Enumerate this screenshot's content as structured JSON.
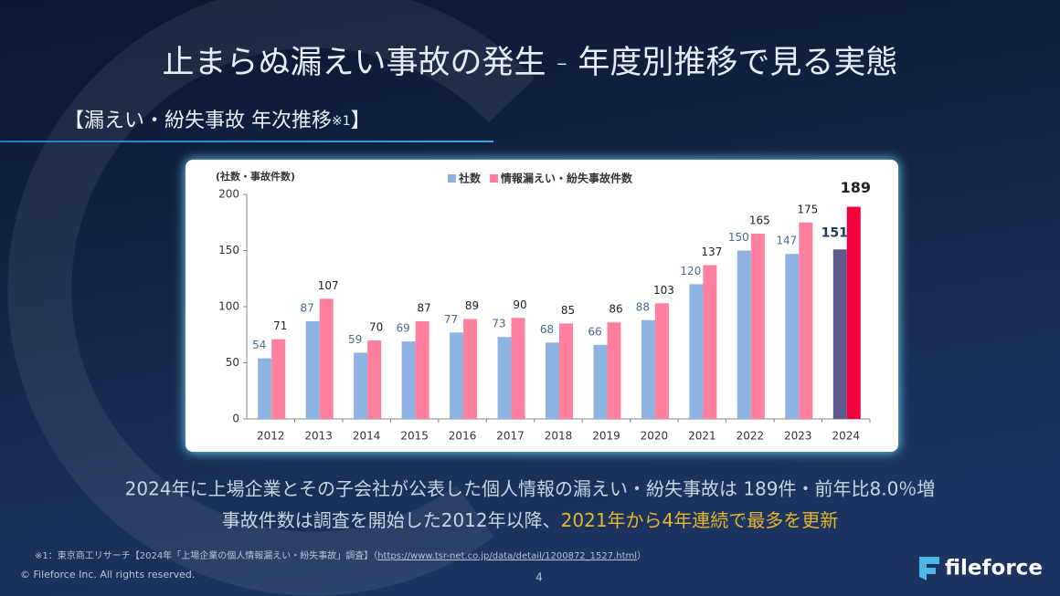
{
  "title": "止まらぬ漏えい事故の発生 - 年度別推移で見る実態",
  "subtitle": {
    "main": "【漏えい・紛失事故 年次推移",
    "note": "※1",
    "close": "】"
  },
  "chart_data": {
    "type": "bar",
    "y_label": "(社数・事故件数)",
    "categories": [
      "2012",
      "2013",
      "2014",
      "2015",
      "2016",
      "2017",
      "2018",
      "2019",
      "2020",
      "2021",
      "2022",
      "2023",
      "2024"
    ],
    "series": [
      {
        "name": "社数",
        "color": "#8db3e2",
        "colors": [
          "#8db3e2",
          "#8db3e2",
          "#8db3e2",
          "#8db3e2",
          "#8db3e2",
          "#8db3e2",
          "#8db3e2",
          "#8db3e2",
          "#8db3e2",
          "#8db3e2",
          "#8db3e2",
          "#8db3e2",
          "#5f5a8e"
        ],
        "values": [
          54,
          87,
          59,
          69,
          77,
          73,
          68,
          66,
          88,
          120,
          150,
          147,
          151
        ]
      },
      {
        "name": "情報漏えい・紛失事故件数",
        "color": "#ff7f9e",
        "colors": [
          "#ff7f9e",
          "#ff7f9e",
          "#ff7f9e",
          "#ff7f9e",
          "#ff7f9e",
          "#ff7f9e",
          "#ff7f9e",
          "#ff7f9e",
          "#ff7f9e",
          "#ff7f9e",
          "#ff7f9e",
          "#ff7f9e",
          "#f0003c"
        ],
        "values": [
          71,
          107,
          70,
          87,
          89,
          90,
          85,
          86,
          103,
          137,
          165,
          175,
          189
        ]
      }
    ],
    "ylim": [
      0,
      200
    ],
    "yticks": [
      0,
      50,
      100,
      150,
      200
    ],
    "grid": false,
    "legend": "top"
  },
  "body": {
    "line1": "2024年に上場企業とその子会社が公表した個人情報の漏えい・紛失事故は 189件・前年比8.0％増",
    "line2_plain": "事故件数は調査を開始した2012年以降、",
    "line2_highlight": "2021年から4年連続で最多を更新"
  },
  "footnote": {
    "source": "※1：東京商工リサーチ【2024年「上場企業の個人情報漏えい・紛失事故」調査】（",
    "url": "https://www.tsr-net.co.jp/data/detail/1200872_1527.html",
    "close": "）"
  },
  "footer": {
    "copyright": "© Fileforce Inc. All rights reserved.",
    "page": "4",
    "logo": "fileforce"
  }
}
